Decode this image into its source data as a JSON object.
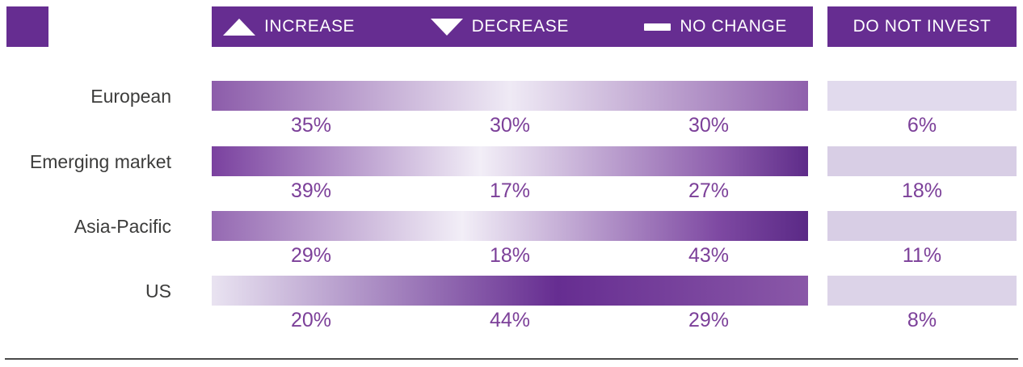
{
  "header": {
    "legend_items": [
      {
        "label": "INCREASE",
        "icon": "triangle-up"
      },
      {
        "label": "DECREASE",
        "icon": "triangle-down"
      },
      {
        "label": "NO CHANGE",
        "icon": "dash"
      }
    ],
    "do_not_invest_label": "DO NOT INVEST"
  },
  "colors": {
    "header_purple": "#662D91",
    "percent_text": "#7C4099",
    "label_text": "#3C3C3B",
    "invest_bar_light": "#DCD4E8",
    "bottom_rule": "#4A4A4A"
  },
  "chart_data": {
    "type": "bar",
    "value_unit": "%",
    "legend_position": "top",
    "legend": [
      "INCREASE",
      "DECREASE",
      "NO CHANGE",
      "DO NOT INVEST"
    ],
    "categories": [
      "European",
      "Emerging market",
      "Asia-Pacific",
      "US"
    ],
    "series": [
      {
        "name": "INCREASE",
        "values": [
          35,
          39,
          29,
          20
        ]
      },
      {
        "name": "DECREASE",
        "values": [
          30,
          17,
          18,
          44
        ]
      },
      {
        "name": "NO CHANGE",
        "values": [
          30,
          27,
          43,
          29
        ]
      },
      {
        "name": "DO NOT INVEST",
        "values": [
          6,
          18,
          11,
          8
        ]
      }
    ],
    "rows": [
      {
        "label": "European",
        "increase_label": "35%",
        "decrease_label": "30%",
        "no_change_label": "30%",
        "do_not_invest_label": "6%",
        "gradient": [
          "#8C5CAA 0%",
          "#EFEAF5 50%",
          "#8F60AC 100%"
        ],
        "invest_bar_color": "#E1DAED"
      },
      {
        "label": "Emerging market",
        "increase_label": "39%",
        "decrease_label": "17%",
        "no_change_label": "27%",
        "do_not_invest_label": "18%",
        "gradient": [
          "#7A419F 0%",
          "#F2EEF7 45%",
          "#8E5FAD 85%",
          "#5E2B89 100%"
        ],
        "invest_bar_color": "#D8CEE5"
      },
      {
        "label": "Asia-Pacific",
        "increase_label": "29%",
        "decrease_label": "18%",
        "no_change_label": "43%",
        "do_not_invest_label": "11%",
        "gradient": [
          "#9569B2 0%",
          "#F2EEF7 42%",
          "#7E49A2 85%",
          "#5A2986 100%"
        ],
        "invest_bar_color": "#D8CEE5"
      },
      {
        "label": "US",
        "increase_label": "20%",
        "decrease_label": "44%",
        "no_change_label": "29%",
        "do_not_invest_label": "8%",
        "gradient": [
          "#E9E3F1 0%",
          "#662D91 58%",
          "#8A58A8 100%"
        ],
        "invest_bar_color": "#DCD3E8"
      }
    ]
  }
}
